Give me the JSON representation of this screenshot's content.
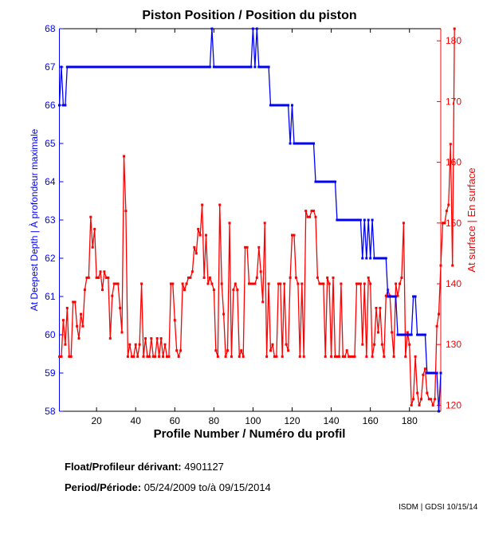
{
  "chart_data": {
    "type": "line",
    "title": "Piston Position / Position du piston",
    "xlabel": "Profile Number / Numéro du profil",
    "ylabel_left": "At Deepest Depth | À profondeur maximale",
    "ylabel_right": "At surface | En surface",
    "xlim": [
      1,
      196
    ],
    "ylim_left": [
      58,
      68
    ],
    "ylim_right": [
      119,
      182
    ],
    "x_ticks": [
      20,
      40,
      60,
      80,
      100,
      120,
      140,
      160,
      180
    ],
    "y_ticks_left": [
      58,
      59,
      60,
      61,
      62,
      63,
      64,
      65,
      66,
      67,
      68
    ],
    "y_ticks_right": [
      120,
      130,
      140,
      150,
      160,
      170,
      180
    ],
    "grid": false,
    "colors": {
      "left": "#0000ff",
      "right": "#ff0000",
      "axis": "#000000"
    },
    "series": [
      {
        "name": "At Deepest Depth",
        "axis": "left",
        "color": "#0000ff",
        "values": [
          66,
          67,
          66,
          66,
          67,
          67,
          67,
          67,
          67,
          67,
          67,
          67,
          67,
          67,
          67,
          67,
          67,
          67,
          67,
          67,
          67,
          67,
          67,
          67,
          67,
          67,
          67,
          67,
          67,
          67,
          67,
          67,
          67,
          67,
          67,
          67,
          67,
          67,
          67,
          67,
          67,
          67,
          67,
          67,
          67,
          67,
          67,
          67,
          67,
          67,
          67,
          67,
          67,
          67,
          67,
          67,
          67,
          67,
          67,
          67,
          67,
          67,
          67,
          67,
          67,
          67,
          67,
          67,
          67,
          67,
          67,
          67,
          67,
          67,
          67,
          67,
          67,
          67,
          68,
          67,
          67,
          67,
          67,
          67,
          67,
          67,
          67,
          67,
          67,
          67,
          67,
          67,
          67,
          67,
          67,
          67,
          67,
          67,
          67,
          68,
          67,
          68,
          67,
          67,
          67,
          67,
          67,
          67,
          66,
          66,
          66,
          66,
          66,
          66,
          66,
          66,
          66,
          66,
          65,
          66,
          65,
          65,
          65,
          65,
          65,
          65,
          65,
          65,
          65,
          65,
          65,
          64,
          64,
          64,
          64,
          64,
          64,
          64,
          64,
          64,
          64,
          64,
          63,
          63,
          63,
          63,
          63,
          63,
          63,
          63,
          63,
          63,
          63,
          63,
          63,
          62,
          63,
          62,
          63,
          62,
          63,
          62,
          62,
          62,
          62,
          62,
          62,
          62,
          61,
          61,
          61,
          61,
          61,
          60,
          60,
          60,
          60,
          60,
          60,
          60,
          60,
          61,
          61,
          60,
          60,
          60,
          60,
          60,
          59,
          59,
          59,
          59,
          59,
          59,
          58,
          59
        ]
      },
      {
        "name": "At surface",
        "axis": "right",
        "color": "#ff0000",
        "values": [
          128,
          128,
          134,
          130,
          136,
          128,
          128,
          137,
          137,
          133,
          131,
          135,
          133,
          139,
          141,
          141,
          151,
          146,
          149,
          141,
          141,
          142,
          139,
          142,
          141,
          141,
          131,
          138,
          140,
          140,
          140,
          136,
          132,
          161,
          152,
          128,
          130,
          128,
          128,
          130,
          128,
          130,
          140,
          128,
          131,
          128,
          128,
          131,
          128,
          128,
          131,
          128,
          131,
          128,
          130,
          128,
          128,
          140,
          140,
          134,
          129,
          128,
          129,
          140,
          139,
          140,
          141,
          141,
          142,
          146,
          145,
          149,
          148,
          153,
          141,
          148,
          140,
          141,
          140,
          139,
          129,
          128,
          153,
          140,
          135,
          128,
          129,
          150,
          128,
          139,
          140,
          139,
          128,
          129,
          128,
          146,
          146,
          140,
          140,
          140,
          140,
          141,
          146,
          142,
          137,
          150,
          128,
          140,
          129,
          130,
          128,
          128,
          140,
          140,
          128,
          140,
          130,
          129,
          141,
          148,
          148,
          141,
          140,
          128,
          140,
          128,
          152,
          151,
          151,
          152,
          152,
          151,
          141,
          140,
          140,
          140,
          128,
          141,
          140,
          128,
          141,
          128,
          128,
          128,
          140,
          128,
          128,
          129,
          128,
          128,
          128,
          128,
          140,
          140,
          140,
          130,
          140,
          128,
          141,
          140,
          128,
          130,
          136,
          132,
          136,
          130,
          128,
          138,
          139,
          138,
          132,
          128,
          140,
          138,
          140,
          141,
          150,
          128,
          132,
          130,
          120,
          121,
          128,
          122,
          120,
          121,
          125,
          126,
          122,
          121,
          121,
          120,
          121,
          133,
          135,
          143,
          150,
          150,
          152,
          153,
          163,
          143,
          182
        ]
      }
    ]
  },
  "info": {
    "float_label": "Float/Profileur dérivant:",
    "float_value": "4901127",
    "period_label": "Period/Période:",
    "period_start": "05/24/2009",
    "period_sep": "to/à",
    "period_end": "09/15/2014"
  },
  "credit": "ISDM | GDSI 10/15/14"
}
